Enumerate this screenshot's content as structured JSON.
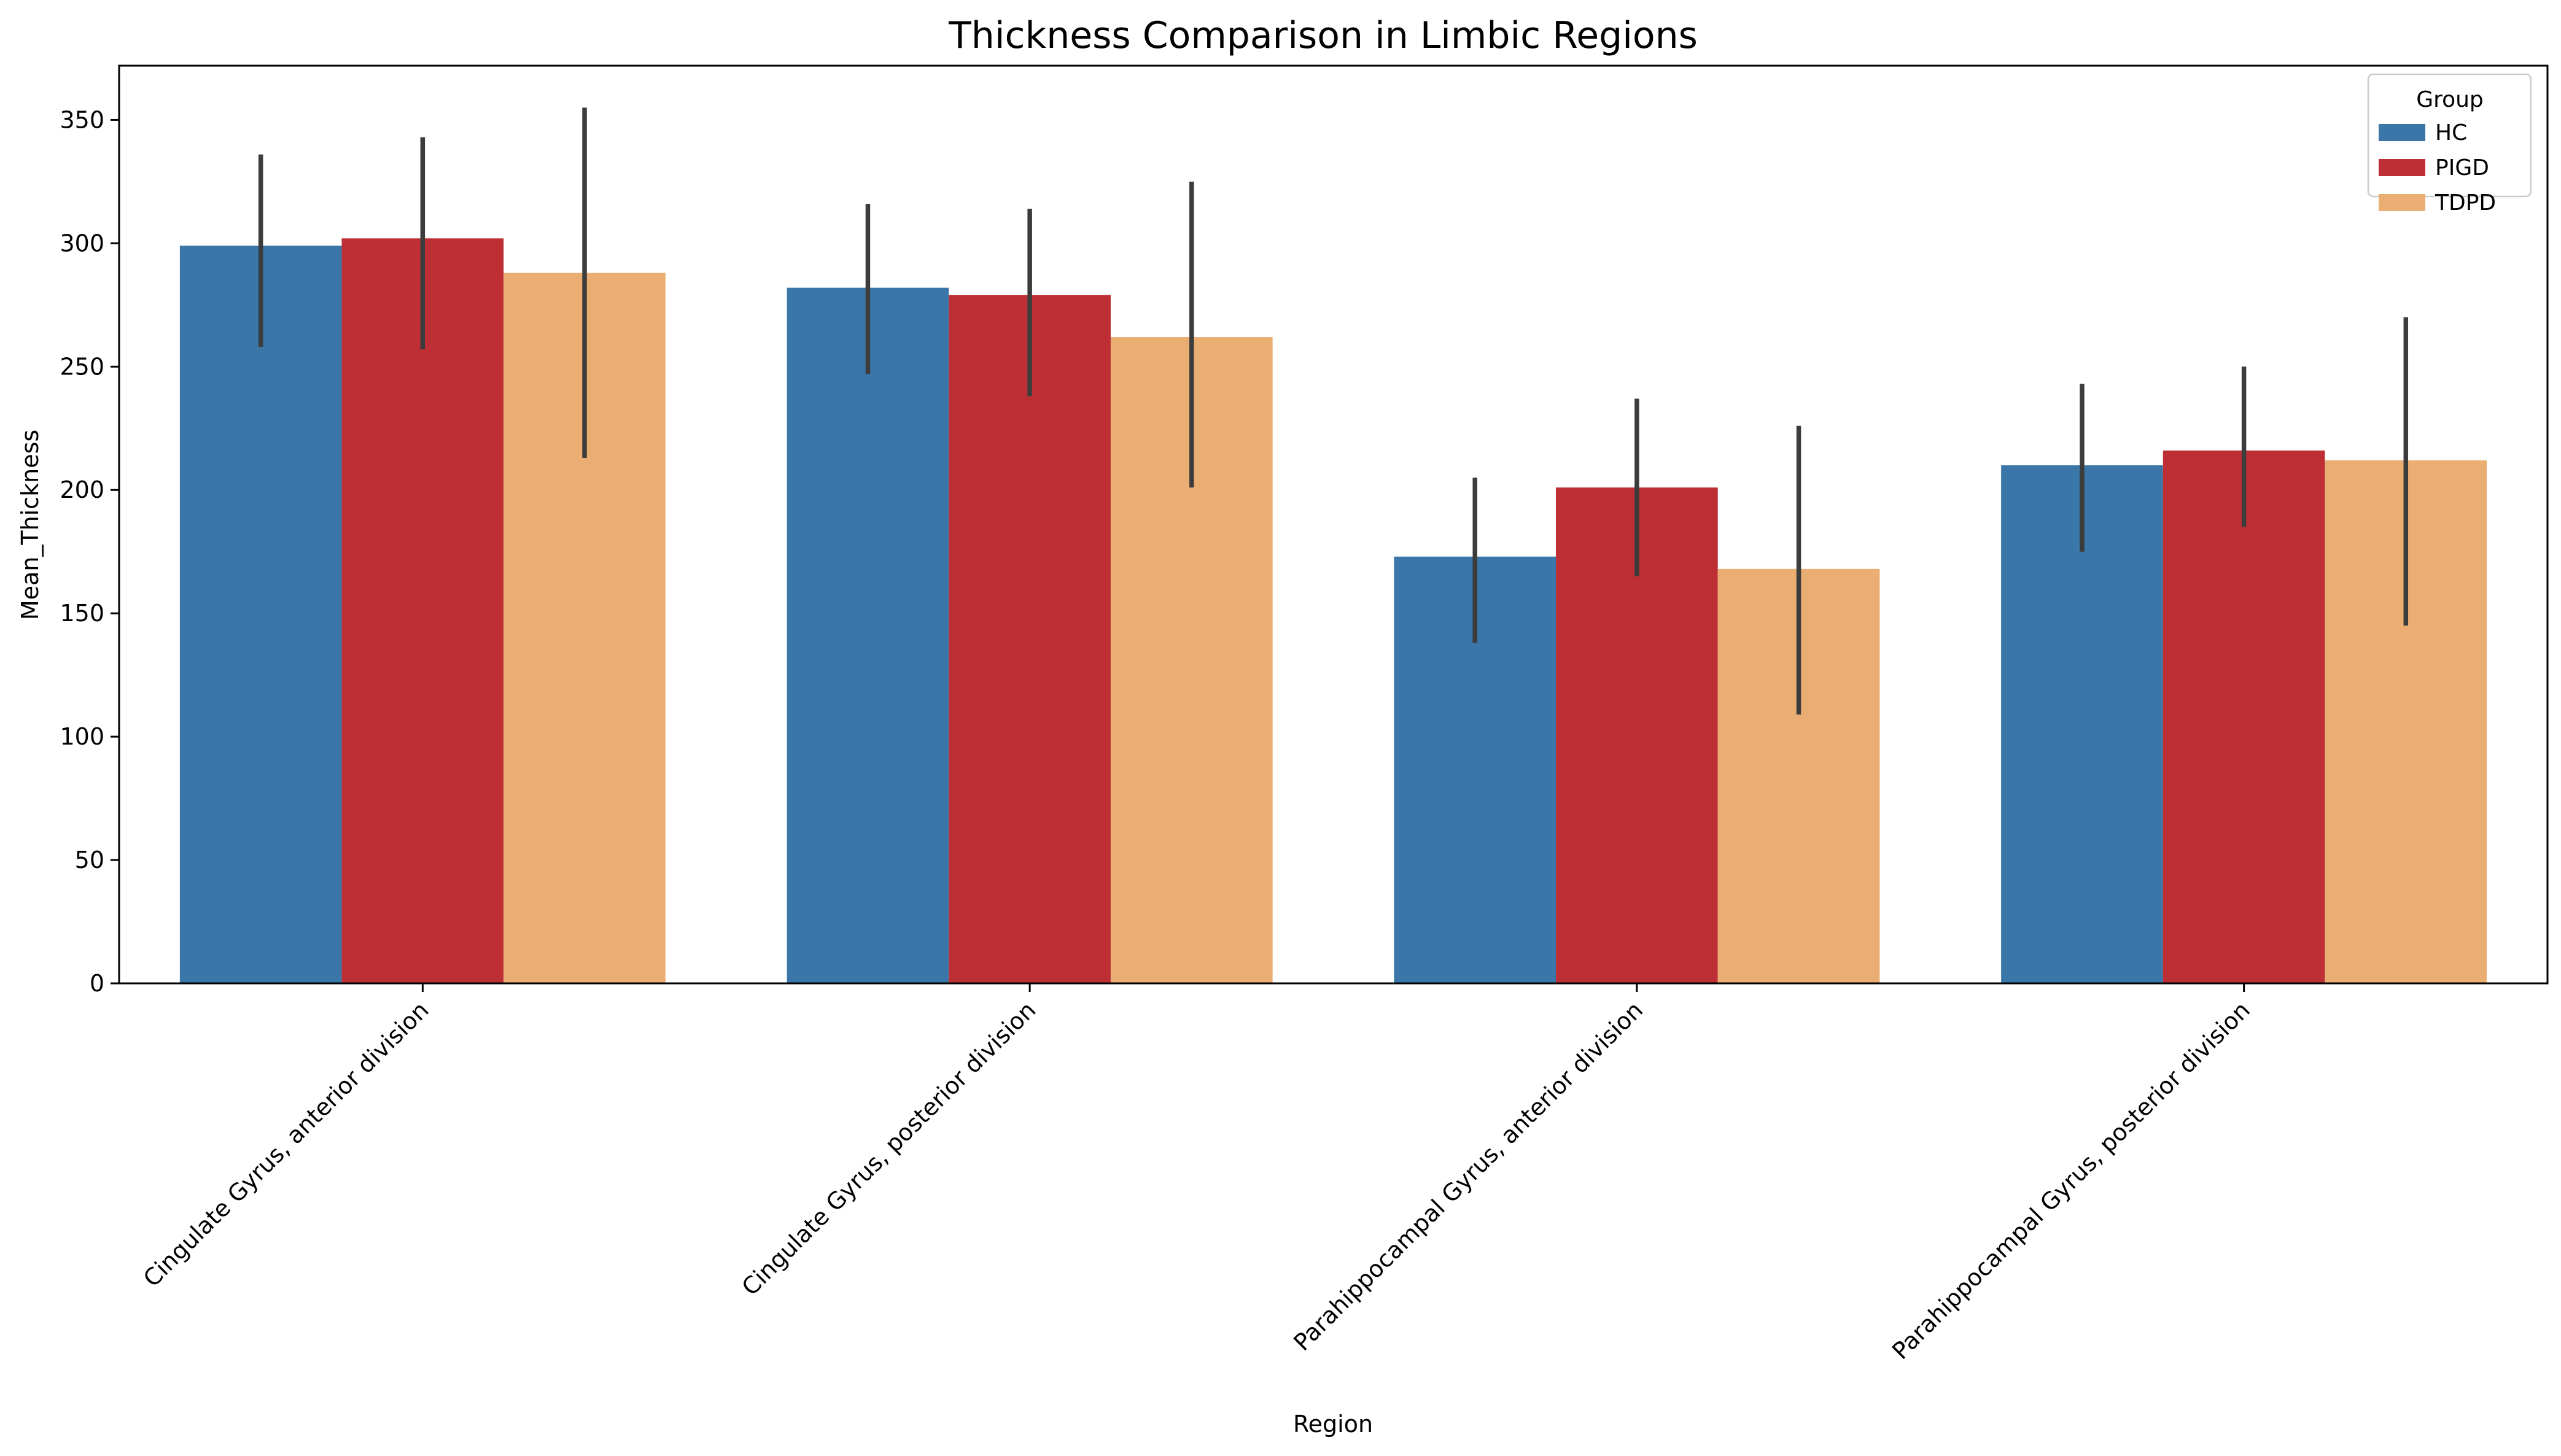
{
  "chart_data": {
    "type": "bar",
    "title": "Thickness Comparison in Limbic Regions",
    "xlabel": "Region",
    "ylabel": "Mean_Thickness",
    "ylim": [
      0,
      372
    ],
    "yticks": [
      0,
      50,
      100,
      150,
      200,
      250,
      300,
      350
    ],
    "grid": false,
    "categories": [
      "Cingulate Gyrus, anterior division",
      "Cingulate Gyrus, posterior division",
      "Parahippocampal Gyrus, anterior division",
      "Parahippocampal Gyrus, posterior division"
    ],
    "series": [
      {
        "name": "HC",
        "color": "#3A77A8",
        "values": [
          299,
          282,
          173,
          210
        ],
        "ci_low": [
          258,
          247,
          138,
          175
        ],
        "ci_high": [
          336,
          316,
          205,
          243
        ]
      },
      {
        "name": "PIGD",
        "color": "#BE2F35",
        "values": [
          302,
          279,
          201,
          216
        ],
        "ci_low": [
          257,
          238,
          165,
          185
        ],
        "ci_high": [
          343,
          314,
          237,
          250
        ]
      },
      {
        "name": "TDPD",
        "color": "#EBAE72",
        "values": [
          288,
          262,
          168,
          212
        ],
        "ci_low": [
          213,
          201,
          109,
          145
        ],
        "ci_high": [
          355,
          325,
          226,
          270
        ]
      }
    ],
    "legend": {
      "title": "Group",
      "position": "top-right"
    },
    "errorbar_color": "#3C3C3C"
  }
}
